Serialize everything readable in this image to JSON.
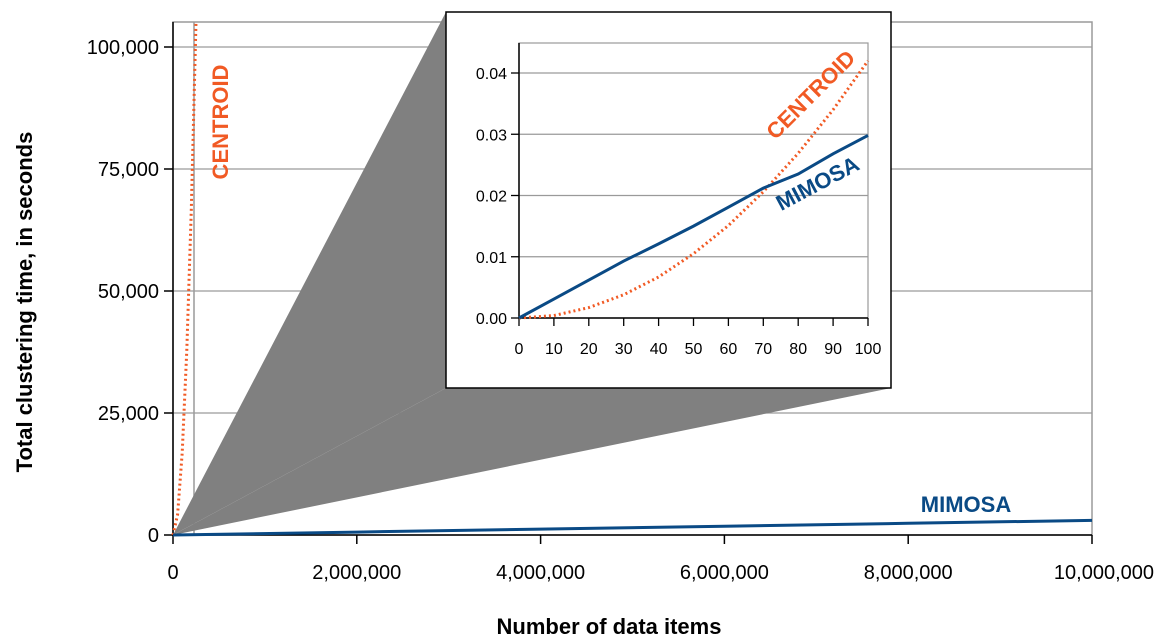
{
  "chart_data": [
    {
      "type": "line",
      "xlabel": "Number of data items",
      "ylabel": "Total clustering time, in seconds",
      "xlim": [
        0,
        10000000
      ],
      "ylim": [
        0,
        105000
      ],
      "x_ticks": [
        "0",
        "2,000,000",
        "4,000,000",
        "6,000,000",
        "8,000,000",
        "10,000,000"
      ],
      "y_ticks": [
        "0",
        "25,000",
        "50,000",
        "75,000",
        "100,000"
      ],
      "grid": "horizontal",
      "series": [
        {
          "name": "CENTROID",
          "color": "#f15a24",
          "style": "dotted",
          "x": [
            0,
            50000,
            100000,
            150000,
            200000,
            250000
          ],
          "y": [
            0,
            4200,
            16800,
            37800,
            67200,
            105000
          ]
        },
        {
          "name": "MIMOSA",
          "color": "#0a4a85",
          "style": "solid",
          "x": [
            0,
            2000000,
            4000000,
            6000000,
            8000000,
            10000000
          ],
          "y": [
            0,
            600,
            1200,
            1800,
            2400,
            3000
          ]
        }
      ]
    },
    {
      "type": "line",
      "inset": true,
      "xlim": [
        0,
        100
      ],
      "ylim": [
        0,
        0.045
      ],
      "x_ticks": [
        "0",
        "10",
        "20",
        "30",
        "40",
        "50",
        "60",
        "70",
        "80",
        "90",
        "100"
      ],
      "y_ticks": [
        "0.00",
        "0.01",
        "0.02",
        "0.03",
        "0.04"
      ],
      "grid": "horizontal",
      "series": [
        {
          "name": "CENTROID",
          "color": "#f15a24",
          "style": "dotted",
          "x": [
            0,
            10,
            20,
            30,
            40,
            50,
            60,
            70,
            80,
            90,
            100
          ],
          "y": [
            0,
            0.0004,
            0.0017,
            0.0038,
            0.0067,
            0.0105,
            0.0151,
            0.0206,
            0.0269,
            0.034,
            0.042
          ]
        },
        {
          "name": "MIMOSA",
          "color": "#0a4a85",
          "style": "solid",
          "x": [
            0,
            10,
            20,
            30,
            40,
            50,
            60,
            70,
            80,
            90,
            100
          ],
          "y": [
            0,
            0.0031,
            0.0062,
            0.0093,
            0.0121,
            0.015,
            0.0181,
            0.0212,
            0.0235,
            0.0268,
            0.0298
          ]
        }
      ]
    }
  ]
}
